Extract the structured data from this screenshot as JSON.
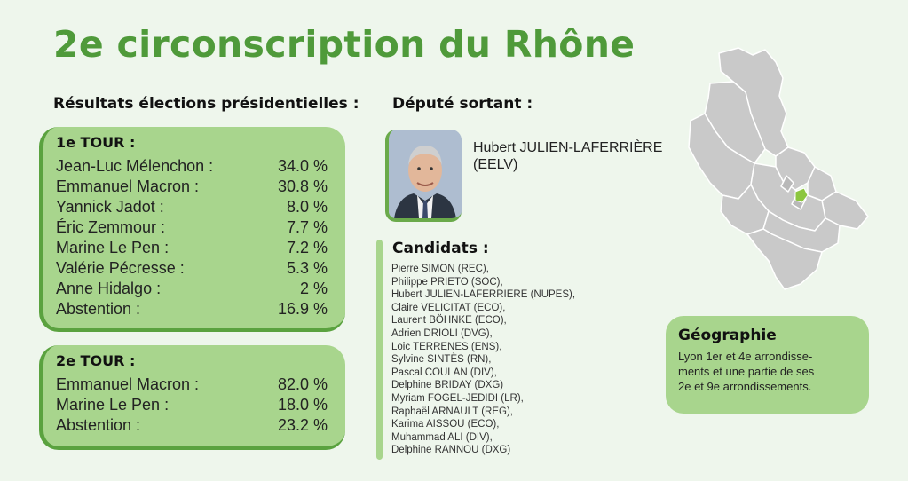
{
  "title": "2e circonscription du Rhône",
  "results": {
    "heading": "Résultats élections présidentielles :",
    "tour1": {
      "label": "1e TOUR :",
      "rows": [
        {
          "name": "Jean-Luc Mélenchon :",
          "value": "34.0 %"
        },
        {
          "name": "Emmanuel Macron :",
          "value": "30.8 %"
        },
        {
          "name": "Yannick Jadot :",
          "value": "8.0 %"
        },
        {
          "name": "Éric Zemmour :",
          "value": "7.7 %"
        },
        {
          "name": "Marine Le Pen :",
          "value": "7.2 %"
        },
        {
          "name": "Valérie Pécresse :",
          "value": "5.3 %"
        },
        {
          "name": "Anne Hidalgo :",
          "value": "2 %"
        },
        {
          "name": "Abstention :",
          "value": "16.9 %"
        }
      ]
    },
    "tour2": {
      "label": "2e TOUR :",
      "rows": [
        {
          "name": "Emmanuel Macron :",
          "value": "82.0 %"
        },
        {
          "name": "Marine Le Pen :",
          "value": "18.0 %"
        },
        {
          "name": "Abstention :",
          "value": "23.2 %"
        }
      ]
    }
  },
  "deputy": {
    "heading": "Député sortant :",
    "name_line1": "Hubert JULIEN-LAFERRIÈRE",
    "name_line2": "(EELV)"
  },
  "candidates": {
    "heading": "Candidats :",
    "items": [
      "Pierre SIMON (REC),",
      "Philippe PRIETO (SOC),",
      "Hubert JULIEN-LAFERRIERE (NUPES),",
      "Claire VELICITAT (ECO),",
      "Laurent BÖHNKE (ECO),",
      "Adrien DRIOLI (DVG),",
      "Loic TERRENES (ENS),",
      "Sylvine SINTÈS (RN),",
      "Pascal COULAN (DIV),",
      "Delphine BRIDAY (DXG)",
      "Myriam FOGEL-JEDIDI (LR),",
      "Raphaël ARNAULT (REG),",
      "Karima AISSOU (ECO),",
      "Muhammad ALI (DIV),",
      "Delphine RANNOU (DXG)"
    ]
  },
  "geography": {
    "heading": "Géographie",
    "line1": "Lyon 1er et 4e arrondisse-",
    "line2": "ments et une partie de ses",
    "line3": "2e et 9e arrondissements."
  },
  "colors": {
    "title_green": "#4f9a3a",
    "box_green": "#a8d58d",
    "border_green": "#5aa23f",
    "map_gray": "#c9c9c9",
    "highlight_green": "#8cc63f"
  }
}
